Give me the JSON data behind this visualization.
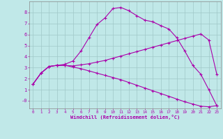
{
  "bg_color": "#c0e8e8",
  "grid_color": "#a0c8c8",
  "line_color": "#aa00aa",
  "marker": "+",
  "xlabel": "Windchill (Refroidissement éolien,°C)",
  "xlim": [
    -0.5,
    23.5
  ],
  "ylim": [
    -0.7,
    9.0
  ],
  "ytick_vals": [
    0,
    1,
    2,
    3,
    4,
    5,
    6,
    7,
    8
  ],
  "ytick_labels": [
    "-0",
    "1",
    "2",
    "3",
    "4",
    "5",
    "6",
    "7",
    "8"
  ],
  "xtick_vals": [
    0,
    1,
    2,
    3,
    4,
    5,
    6,
    7,
    8,
    9,
    10,
    11,
    12,
    13,
    14,
    15,
    16,
    17,
    18,
    19,
    20,
    21,
    22,
    23
  ],
  "line1_x": [
    0,
    1,
    2,
    3,
    4,
    5,
    6,
    7,
    8,
    9,
    10,
    11,
    12,
    13,
    14,
    15,
    16,
    17,
    18,
    19,
    20,
    21,
    22,
    23
  ],
  "line1_y": [
    1.5,
    2.5,
    3.1,
    3.2,
    3.2,
    3.15,
    3.25,
    3.35,
    3.5,
    3.65,
    3.85,
    4.05,
    4.25,
    4.45,
    4.65,
    4.85,
    5.05,
    5.25,
    5.45,
    5.65,
    5.85,
    6.05,
    5.5,
    2.4
  ],
  "line2_x": [
    0,
    1,
    2,
    3,
    4,
    5,
    6,
    7,
    8,
    9,
    10,
    11,
    12,
    13,
    14,
    15,
    16,
    17,
    18,
    19,
    20,
    21,
    22,
    23
  ],
  "line2_y": [
    1.5,
    2.5,
    3.1,
    3.2,
    3.2,
    3.05,
    2.9,
    2.7,
    2.5,
    2.3,
    2.1,
    1.9,
    1.65,
    1.4,
    1.15,
    0.9,
    0.65,
    0.4,
    0.15,
    -0.1,
    -0.3,
    -0.5,
    -0.55,
    -0.45
  ],
  "line3_x": [
    0,
    1,
    2,
    3,
    4,
    5,
    6,
    7,
    8,
    9,
    10,
    11,
    12,
    13,
    14,
    15,
    16,
    17,
    18,
    19,
    20,
    21,
    22,
    23
  ],
  "line3_y": [
    1.5,
    2.5,
    3.1,
    3.2,
    3.3,
    3.6,
    4.5,
    5.7,
    6.9,
    7.5,
    8.35,
    8.45,
    8.15,
    7.7,
    7.3,
    7.15,
    6.8,
    6.5,
    5.7,
    4.5,
    3.2,
    2.4,
    1.0,
    -0.45
  ]
}
